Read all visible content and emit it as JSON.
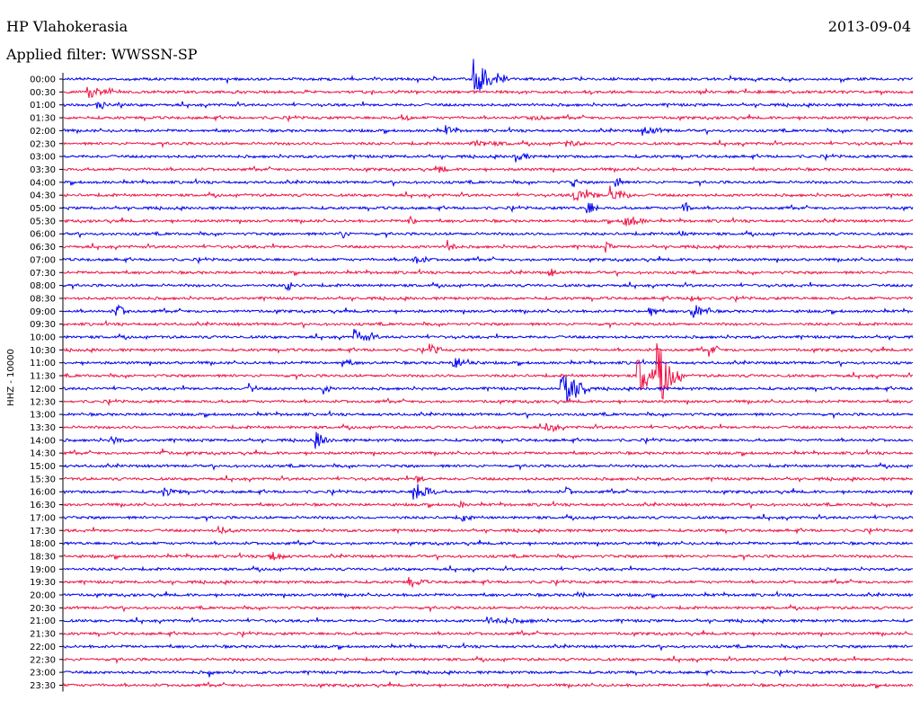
{
  "header": {
    "station": "HP Vlahokerasia",
    "date": "2013-09-04",
    "filter": "Applied filter: WWSSN-SP"
  },
  "chart_data": {
    "type": "line",
    "title": "HP Vlahokerasia",
    "ylabel": "HHZ - 10000",
    "colors": {
      "even_rows": "#0000ee",
      "odd_rows": "#ee1144"
    },
    "rows": [
      "00:00",
      "00:30",
      "01:00",
      "01:30",
      "02:00",
      "02:30",
      "03:00",
      "03:30",
      "04:00",
      "04:30",
      "05:00",
      "05:30",
      "06:00",
      "06:30",
      "07:00",
      "07:30",
      "08:00",
      "08:30",
      "09:00",
      "09:30",
      "10:00",
      "10:30",
      "11:00",
      "11:30",
      "12:00",
      "12:30",
      "13:00",
      "13:30",
      "14:00",
      "14:30",
      "15:00",
      "15:30",
      "16:00",
      "16:30",
      "17:00",
      "17:30",
      "18:00",
      "18:30",
      "19:00",
      "19:30",
      "20:00",
      "20:30",
      "21:00",
      "21:30",
      "22:00",
      "22:30",
      "23:00",
      "23:30"
    ],
    "events": [
      {
        "row": 0,
        "minute": 14.5,
        "amp": 22,
        "len": 1.2
      },
      {
        "row": 1,
        "minute": 0.9,
        "amp": 6,
        "len": 0.8
      },
      {
        "row": 2,
        "minute": 1.2,
        "amp": 4,
        "len": 0.5
      },
      {
        "row": 3,
        "minute": 12.0,
        "amp": 3,
        "len": 0.4
      },
      {
        "row": 3,
        "minute": 16.5,
        "amp": 3,
        "len": 0.8
      },
      {
        "row": 4,
        "minute": 13.5,
        "amp": 5,
        "len": 0.5
      },
      {
        "row": 4,
        "minute": 20.5,
        "amp": 4,
        "len": 1.0
      },
      {
        "row": 5,
        "minute": 14.5,
        "amp": 3,
        "len": 1.4
      },
      {
        "row": 5,
        "minute": 17.8,
        "amp": 3,
        "len": 0.6
      },
      {
        "row": 6,
        "minute": 16.0,
        "amp": 6,
        "len": 0.5
      },
      {
        "row": 7,
        "minute": 13.3,
        "amp": 4,
        "len": 0.3
      },
      {
        "row": 8,
        "minute": 18.0,
        "amp": 6,
        "len": 0.2
      },
      {
        "row": 8,
        "minute": 19.5,
        "amp": 16,
        "len": 0.2
      },
      {
        "row": 9,
        "minute": 18.0,
        "amp": 9,
        "len": 1.0
      },
      {
        "row": 9,
        "minute": 19.3,
        "amp": 10,
        "len": 0.8
      },
      {
        "row": 10,
        "minute": 18.5,
        "amp": 9,
        "len": 0.4
      },
      {
        "row": 10,
        "minute": 21.9,
        "amp": 7,
        "len": 0.4
      },
      {
        "row": 11,
        "minute": 19.8,
        "amp": 8,
        "len": 0.8
      },
      {
        "row": 11,
        "minute": 12.2,
        "amp": 5,
        "len": 0.4
      },
      {
        "row": 12,
        "minute": 9.8,
        "amp": 6,
        "len": 0.3
      },
      {
        "row": 12,
        "minute": 21.8,
        "amp": 3,
        "len": 0.4
      },
      {
        "row": 13,
        "minute": 13.6,
        "amp": 8,
        "len": 0.3
      },
      {
        "row": 13,
        "minute": 19.2,
        "amp": 5,
        "len": 0.2
      },
      {
        "row": 14,
        "minute": 12.4,
        "amp": 5,
        "len": 0.6
      },
      {
        "row": 15,
        "minute": 17.2,
        "amp": 4,
        "len": 0.3
      },
      {
        "row": 16,
        "minute": 7.9,
        "amp": 5,
        "len": 0.5
      },
      {
        "row": 17,
        "minute": 22.2,
        "amp": 4,
        "len": 0.5
      },
      {
        "row": 18,
        "minute": 1.9,
        "amp": 7,
        "len": 0.5
      },
      {
        "row": 18,
        "minute": 20.7,
        "amp": 7,
        "len": 0.4
      },
      {
        "row": 18,
        "minute": 22.2,
        "amp": 9,
        "len": 0.8
      },
      {
        "row": 20,
        "minute": 10.3,
        "amp": 8,
        "len": 0.8
      },
      {
        "row": 21,
        "minute": 12.9,
        "amp": 7,
        "len": 0.5
      },
      {
        "row": 21,
        "minute": 22.8,
        "amp": 6,
        "len": 0.4
      },
      {
        "row": 22,
        "minute": 13.8,
        "amp": 7,
        "len": 0.9
      },
      {
        "row": 22,
        "minute": 9.9,
        "amp": 4,
        "len": 0.5
      },
      {
        "row": 23,
        "minute": 20.3,
        "amp": 22,
        "len": 1.0
      },
      {
        "row": 23,
        "minute": 21.0,
        "amp": 30,
        "len": 0.9
      },
      {
        "row": 24,
        "minute": 17.6,
        "amp": 28,
        "len": 1.0
      },
      {
        "row": 24,
        "minute": 6.6,
        "amp": 5,
        "len": 0.3
      },
      {
        "row": 24,
        "minute": 9.2,
        "amp": 5,
        "len": 0.3
      },
      {
        "row": 27,
        "minute": 17.1,
        "amp": 9,
        "len": 0.4
      },
      {
        "row": 28,
        "minute": 8.9,
        "amp": 9,
        "len": 0.6
      },
      {
        "row": 28,
        "minute": 1.7,
        "amp": 6,
        "len": 0.4
      },
      {
        "row": 29,
        "minute": 3.5,
        "amp": 5,
        "len": 0.2
      },
      {
        "row": 31,
        "minute": 12.5,
        "amp": 5,
        "len": 0.3
      },
      {
        "row": 32,
        "minute": 12.4,
        "amp": 12,
        "len": 0.8
      },
      {
        "row": 32,
        "minute": 3.6,
        "amp": 4,
        "len": 0.6
      },
      {
        "row": 32,
        "minute": 17.8,
        "amp": 4,
        "len": 0.3
      },
      {
        "row": 33,
        "minute": 14.0,
        "amp": 5,
        "len": 0.2
      },
      {
        "row": 34,
        "minute": 14.1,
        "amp": 5,
        "len": 0.3
      },
      {
        "row": 35,
        "minute": 5.5,
        "amp": 4,
        "len": 0.6
      },
      {
        "row": 37,
        "minute": 7.3,
        "amp": 7,
        "len": 0.6
      },
      {
        "row": 39,
        "minute": 12.2,
        "amp": 5,
        "len": 0.7
      },
      {
        "row": 40,
        "minute": 18.2,
        "amp": 4,
        "len": 0.3
      },
      {
        "row": 42,
        "minute": 15.0,
        "amp": 3,
        "len": 2.0
      },
      {
        "row": 46,
        "minute": 5.2,
        "amp": 4,
        "len": 0.1
      }
    ]
  }
}
